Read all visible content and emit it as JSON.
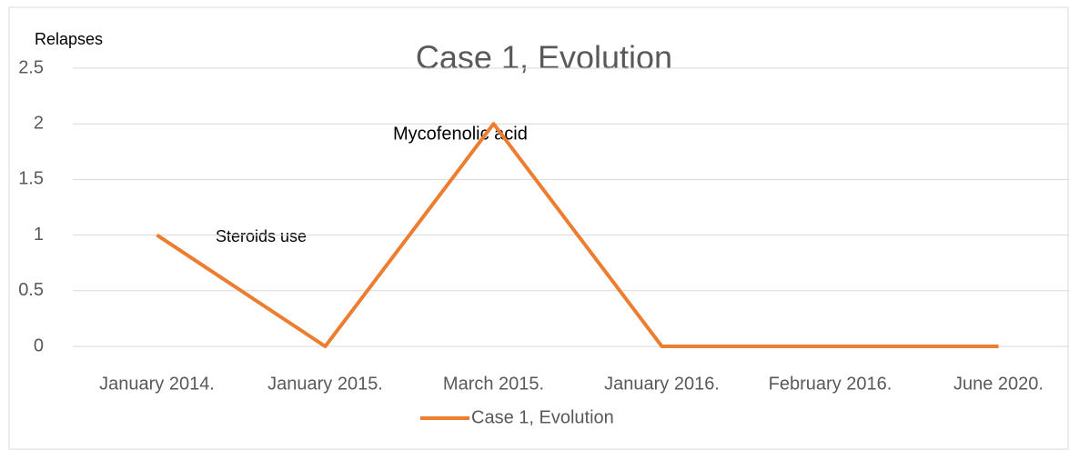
{
  "chart_data": {
    "type": "line",
    "title": "Case 1, Evolution",
    "y_label": "Relapses",
    "categories": [
      "January 2014.",
      "January 2015.",
      "March 2015.",
      "January 2016.",
      "February 2016.",
      "June 2020."
    ],
    "series": [
      {
        "name": "Case 1, Evolution",
        "color": "#ed7d31",
        "values": [
          1,
          0,
          2,
          0,
          0,
          0
        ]
      }
    ],
    "annotations": [
      "Steroids use",
      "Mycofenolic acid"
    ],
    "ylim": [
      0,
      2.5
    ],
    "yticks": [
      0,
      0.5,
      1,
      1.5,
      2,
      2.5
    ],
    "grid": true,
    "legend": "bottom"
  }
}
